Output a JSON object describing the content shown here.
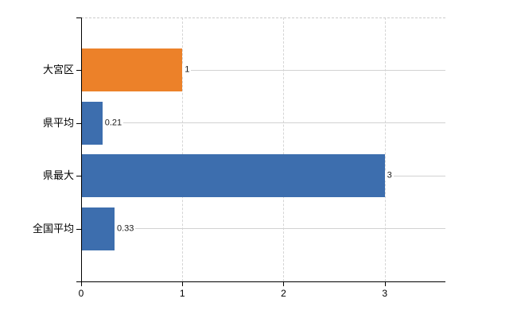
{
  "chart_data": {
    "type": "bar",
    "orientation": "horizontal",
    "title": "",
    "xlabel": "",
    "ylabel": "",
    "categories": [
      "大宮区",
      "県平均",
      "県最大",
      "全国平均"
    ],
    "values": [
      1,
      0.21,
      3,
      0.33
    ],
    "value_labels": [
      "1",
      "0.21",
      "3",
      "0.33"
    ],
    "bar_colors": [
      "#EC8129",
      "#3D6EAE",
      "#3D6EAE",
      "#3D6EAE"
    ],
    "x_ticks": [
      0,
      1,
      2,
      3
    ],
    "x_tick_labels": [
      "0",
      "1",
      "2",
      "3"
    ],
    "xlim": [
      0,
      3.6
    ],
    "grid": {
      "vertical_style": "dashed",
      "horizontal_style": "solid",
      "horizontal_at": "category-centers",
      "top_border_style": "dashed"
    },
    "legend": "none"
  },
  "colors": {
    "background": "#FFFFFF",
    "axis": "#000000",
    "gridline_horizontal": "#D2D2D2",
    "gridline_vertical": "#D5D5D5",
    "plot_top_border": "#CBCBCB",
    "value_label_text": "#1A1A1A",
    "category_label_text": "#000000"
  }
}
